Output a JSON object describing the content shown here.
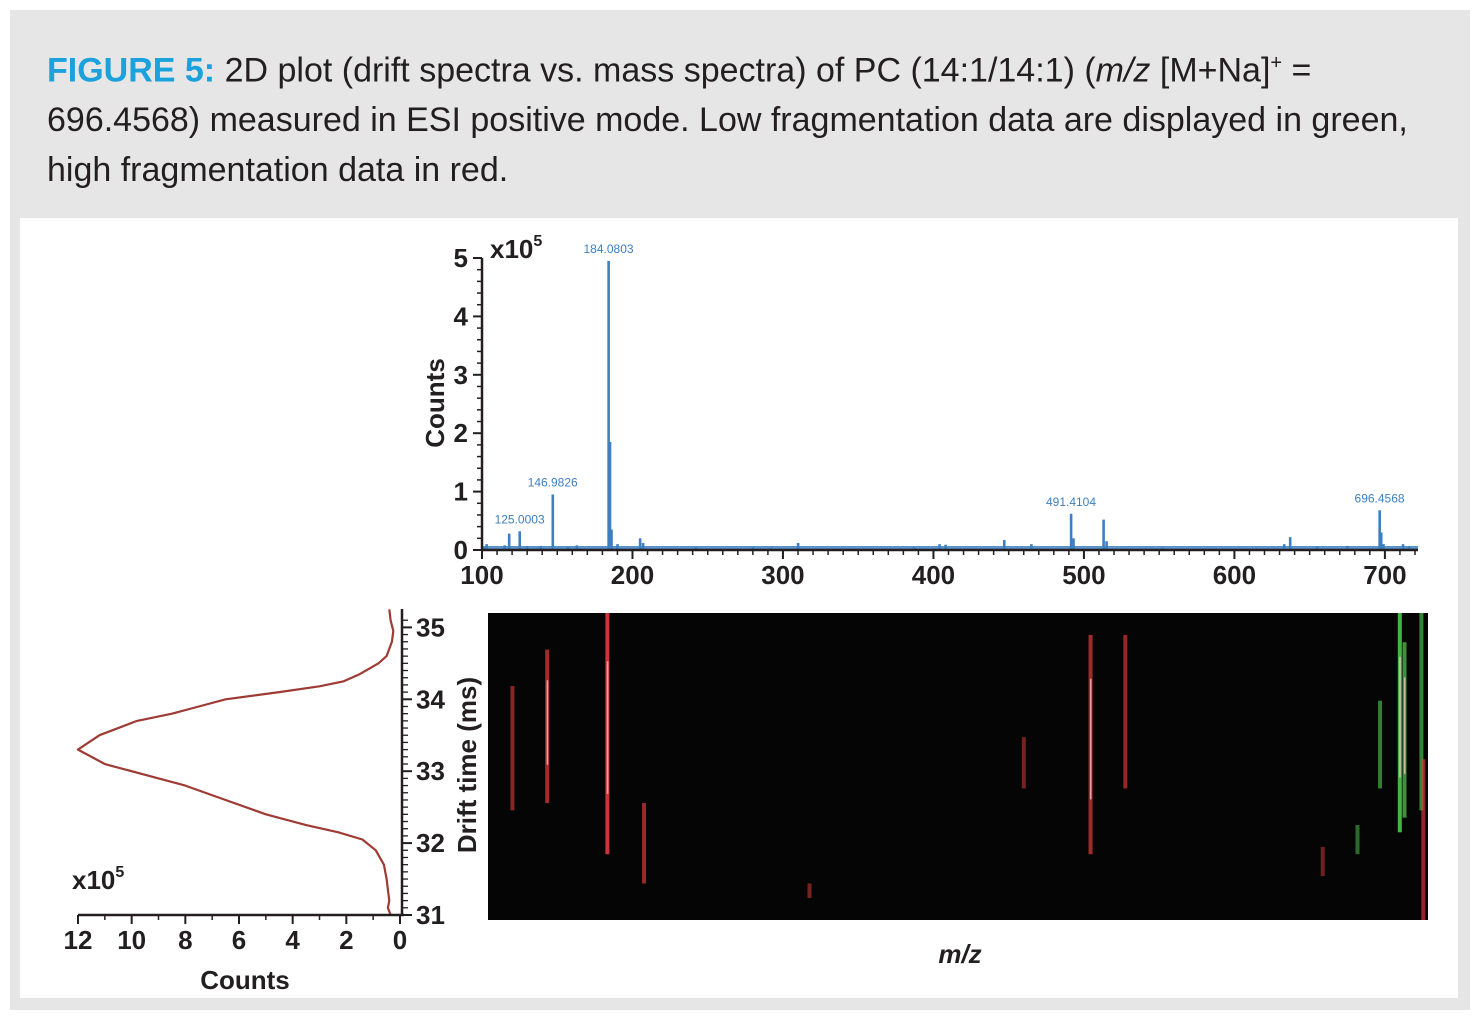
{
  "caption": {
    "label": "FIGURE 5:",
    "text1": " 2D plot (drift spectra vs. mass spectra) of PC (14:1/14:1) (",
    "mz": "m/z",
    "text2": " [M+Na]",
    "sup": "+",
    "text3": " = 696.4568) measured in ESI positive mode. Low fragmentation data are displayed in green, high fragmentation data in red."
  },
  "colors": {
    "caption_accent": "#1ba1dc",
    "spectrum": "#3d7fc1",
    "drift_trace": "#9e3b35",
    "heatmap_bg": "#050505",
    "high_frag": "#e23b3b",
    "low_frag": "#4ec74e"
  },
  "chart_data": [
    {
      "type": "bar",
      "panel": "mass spectrum",
      "xlabel": "",
      "ylabel": "Counts",
      "y_multiplier": "x10",
      "y_multiplier_exp": "5",
      "xlim": [
        100,
        722
      ],
      "ylim": [
        0,
        5
      ],
      "xticks": [
        "100",
        "200",
        "300",
        "400",
        "500",
        "600",
        "700"
      ],
      "yticks": [
        "0",
        "1",
        "2",
        "3",
        "4",
        "5"
      ],
      "peaks": [
        {
          "x": 101,
          "y": 0.05
        },
        {
          "x": 103,
          "y": 0.1
        },
        {
          "x": 115,
          "y": 0.08
        },
        {
          "x": 118,
          "y": 0.28
        },
        {
          "x": 125.0003,
          "y": 0.32,
          "label": "125.0003"
        },
        {
          "x": 130,
          "y": 0.06
        },
        {
          "x": 139,
          "y": 0.07
        },
        {
          "x": 146.9826,
          "y": 0.95,
          "label": "146.9826"
        },
        {
          "x": 157,
          "y": 0.05
        },
        {
          "x": 163,
          "y": 0.08
        },
        {
          "x": 184.0803,
          "y": 4.95,
          "label": "184.0803"
        },
        {
          "x": 185,
          "y": 1.85
        },
        {
          "x": 186,
          "y": 0.35
        },
        {
          "x": 190,
          "y": 0.1
        },
        {
          "x": 205,
          "y": 0.2
        },
        {
          "x": 207,
          "y": 0.12
        },
        {
          "x": 242,
          "y": 0.05
        },
        {
          "x": 280,
          "y": 0.05
        },
        {
          "x": 292,
          "y": 0.04
        },
        {
          "x": 310,
          "y": 0.12
        },
        {
          "x": 387,
          "y": 0.05
        },
        {
          "x": 404,
          "y": 0.1
        },
        {
          "x": 408,
          "y": 0.09
        },
        {
          "x": 447,
          "y": 0.17
        },
        {
          "x": 465,
          "y": 0.1
        },
        {
          "x": 491.4104,
          "y": 0.62,
          "label": "491.4104"
        },
        {
          "x": 493,
          "y": 0.2
        },
        {
          "x": 513,
          "y": 0.52
        },
        {
          "x": 515,
          "y": 0.15
        },
        {
          "x": 552,
          "y": 0.04
        },
        {
          "x": 633,
          "y": 0.1
        },
        {
          "x": 637,
          "y": 0.22
        },
        {
          "x": 655,
          "y": 0.06
        },
        {
          "x": 675,
          "y": 0.07
        },
        {
          "x": 696.4568,
          "y": 0.68,
          "label": "696.4568"
        },
        {
          "x": 697.5,
          "y": 0.3
        },
        {
          "x": 699,
          "y": 0.1
        },
        {
          "x": 712,
          "y": 0.1
        },
        {
          "x": 716,
          "y": 0.06
        }
      ]
    },
    {
      "type": "line",
      "panel": "drift spectrum",
      "xlabel": "Counts",
      "ylabel": "Drift time (ms)",
      "x_multiplier": "x10",
      "x_multiplier_exp": "5",
      "xlim": [
        12,
        0
      ],
      "ylim": [
        31,
        35.2
      ],
      "xticks": [
        "12",
        "10",
        "8",
        "6",
        "4",
        "2",
        "0"
      ],
      "yticks": [
        "31",
        "32",
        "33",
        "34",
        "35"
      ],
      "x": [
        0.4,
        0.35,
        0.25,
        0.3,
        0.5,
        0.8,
        1.5,
        2.1,
        3.0,
        4.5,
        6.5,
        7.5,
        8.5,
        9.8,
        11.2,
        12.0,
        11.0,
        9.5,
        8.0,
        6.5,
        5.0,
        3.5,
        2.3,
        1.4,
        0.9,
        0.6,
        0.5,
        0.45,
        0.4,
        0.45,
        0.4,
        0.35
      ],
      "y": [
        35.25,
        35.1,
        34.95,
        34.8,
        34.6,
        34.5,
        34.35,
        34.25,
        34.18,
        34.1,
        34.0,
        33.9,
        33.8,
        33.7,
        33.5,
        33.3,
        33.1,
        32.95,
        32.8,
        32.6,
        32.4,
        32.25,
        32.15,
        32.05,
        31.9,
        31.7,
        31.5,
        31.35,
        31.2,
        31.1,
        31.05,
        31.0
      ]
    },
    {
      "type": "heatmap",
      "panel": "2D drift vs mass",
      "xlabel": "m/z",
      "ylabel": "",
      "streaks": [
        {
          "f": 0.026,
          "y1": 34.2,
          "y2": 32.5,
          "c": "high",
          "i": 0.45
        },
        {
          "f": 0.063,
          "y1": 34.7,
          "y2": 32.6,
          "c": "high",
          "i": 0.7
        },
        {
          "f": 0.127,
          "y1": 35.3,
          "y2": 31.9,
          "c": "high",
          "i": 1.0
        },
        {
          "f": 0.166,
          "y1": 32.6,
          "y2": 31.5,
          "c": "high",
          "i": 0.6
        },
        {
          "f": 0.342,
          "y1": 31.5,
          "y2": 31.3,
          "c": "high",
          "i": 0.3
        },
        {
          "f": 0.57,
          "y1": 33.5,
          "y2": 32.8,
          "c": "high",
          "i": 0.3
        },
        {
          "f": 0.641,
          "y1": 34.9,
          "y2": 31.9,
          "c": "high",
          "i": 0.65
        },
        {
          "f": 0.678,
          "y1": 34.9,
          "y2": 32.8,
          "c": "high",
          "i": 0.55
        },
        {
          "f": 0.888,
          "y1": 32.0,
          "y2": 31.6,
          "c": "high",
          "i": 0.25
        },
        {
          "f": 0.925,
          "y1": 32.3,
          "y2": 31.9,
          "c": "low",
          "i": 0.3
        },
        {
          "f": 0.949,
          "y1": 34.0,
          "y2": 32.8,
          "c": "low",
          "i": 0.5
        },
        {
          "f": 0.97,
          "y1": 35.2,
          "y2": 32.2,
          "c": "low",
          "i": 1.0
        },
        {
          "f": 0.975,
          "y1": 34.8,
          "y2": 32.4,
          "c": "low",
          "i": 0.7
        },
        {
          "f": 0.993,
          "y1": 35.2,
          "y2": 32.5,
          "c": "low",
          "i": 0.55
        },
        {
          "f": 0.995,
          "y1": 33.2,
          "y2": 31.0,
          "c": "high",
          "i": 0.55
        }
      ]
    }
  ]
}
